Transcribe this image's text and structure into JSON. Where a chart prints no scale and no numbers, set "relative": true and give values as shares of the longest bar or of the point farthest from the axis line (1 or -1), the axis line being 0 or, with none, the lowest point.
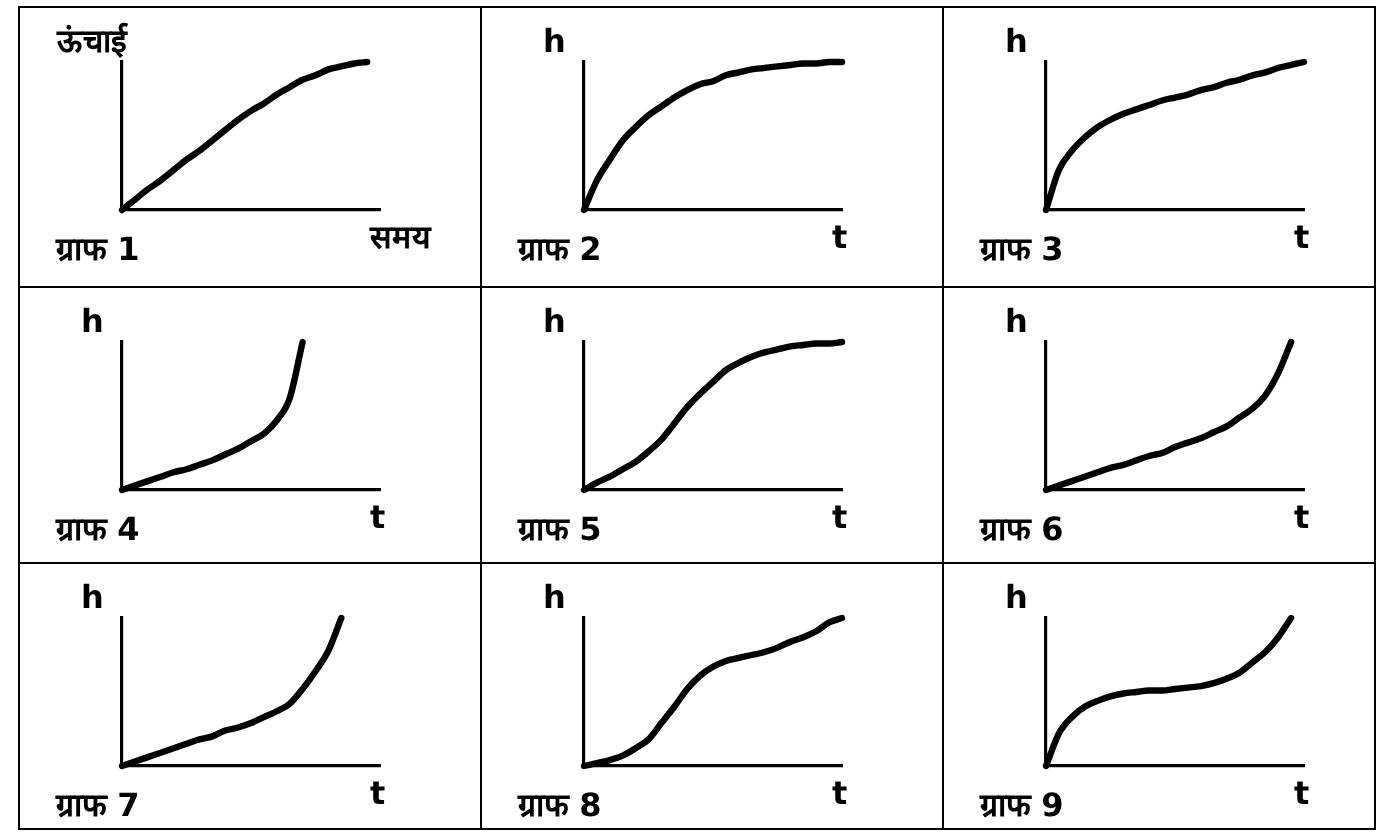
{
  "chart_data": [
    {
      "type": "line",
      "title": "ग्राफ 1",
      "xlabel": "समय",
      "ylabel": "ऊंचाई",
      "relative": true,
      "color": "#000000",
      "categories": [
        null,
        null,
        null,
        null,
        null,
        null,
        null,
        null,
        null,
        null,
        null,
        null,
        null,
        null,
        null,
        null,
        null,
        null,
        null,
        null,
        null
      ],
      "values": [
        0,
        0.07,
        0.14,
        0.2,
        0.27,
        0.34,
        0.4,
        0.47,
        0.54,
        0.61,
        0.67,
        0.72,
        0.78,
        0.83,
        0.88,
        0.91,
        0.95,
        0.97,
        0.99,
        1,
        null
      ]
    },
    {
      "type": "line",
      "title": "ग्राफ 2",
      "xlabel": "t",
      "ylabel": "h",
      "relative": true,
      "color": "#000000",
      "categories": [
        null,
        null,
        null,
        null,
        null,
        null,
        null,
        null,
        null,
        null,
        null,
        null,
        null,
        null,
        null,
        null,
        null,
        null,
        null,
        null,
        null
      ],
      "values": [
        0,
        0.2,
        0.34,
        0.47,
        0.56,
        0.64,
        0.7,
        0.76,
        0.81,
        0.85,
        0.87,
        0.91,
        0.93,
        0.95,
        0.96,
        0.97,
        0.98,
        0.99,
        0.99,
        1,
        1
      ]
    },
    {
      "type": "line",
      "title": "ग्राफ 3",
      "xlabel": "t",
      "ylabel": "h",
      "relative": true,
      "color": "#000000",
      "categories": [
        null,
        null,
        null,
        null,
        null,
        null,
        null,
        null,
        null,
        null,
        null,
        null,
        null,
        null,
        null,
        null,
        null,
        null,
        null,
        null,
        null
      ],
      "values": [
        0,
        0.27,
        0.4,
        0.49,
        0.56,
        0.61,
        0.65,
        0.68,
        0.71,
        0.74,
        0.76,
        0.78,
        0.81,
        0.83,
        0.86,
        0.88,
        0.91,
        0.93,
        0.96,
        0.98,
        1
      ]
    },
    {
      "type": "line",
      "title": "ग्राफ 4",
      "xlabel": "t",
      "ylabel": "h",
      "relative": true,
      "color": "#000000",
      "categories": [
        null,
        null,
        null,
        null,
        null,
        null,
        null,
        null,
        null,
        null,
        null,
        null,
        null,
        null,
        null,
        null,
        null,
        null,
        null,
        null,
        null
      ],
      "values": [
        0,
        0.03,
        0.06,
        0.09,
        0.12,
        0.14,
        0.17,
        0.2,
        0.24,
        0.28,
        0.33,
        0.38,
        0.47,
        0.62,
        1,
        null,
        null,
        null,
        null,
        null,
        null
      ]
    },
    {
      "type": "line",
      "title": "ग्राफ 5",
      "xlabel": "t",
      "ylabel": "h",
      "relative": true,
      "color": "#000000",
      "categories": [
        null,
        null,
        null,
        null,
        null,
        null,
        null,
        null,
        null,
        null,
        null,
        null,
        null,
        null,
        null,
        null,
        null,
        null,
        null,
        null,
        null
      ],
      "values": [
        0,
        0.05,
        0.09,
        0.14,
        0.19,
        0.26,
        0.34,
        0.45,
        0.56,
        0.65,
        0.73,
        0.81,
        0.86,
        0.9,
        0.93,
        0.95,
        0.97,
        0.98,
        0.99,
        0.99,
        1
      ]
    },
    {
      "type": "line",
      "title": "ग्राफ 6",
      "xlabel": "t",
      "ylabel": "h",
      "relative": true,
      "color": "#000000",
      "categories": [
        null,
        null,
        null,
        null,
        null,
        null,
        null,
        null,
        null,
        null,
        null,
        null,
        null,
        null,
        null,
        null,
        null,
        null,
        null,
        null,
        null
      ],
      "values": [
        0,
        0.03,
        0.06,
        0.09,
        0.12,
        0.15,
        0.17,
        0.2,
        0.23,
        0.25,
        0.29,
        0.32,
        0.35,
        0.39,
        0.43,
        0.49,
        0.55,
        0.64,
        0.79,
        1,
        null
      ]
    },
    {
      "type": "line",
      "title": "ग्राफ 7",
      "xlabel": "t",
      "ylabel": "h",
      "relative": true,
      "color": "#000000",
      "categories": [
        null,
        null,
        null,
        null,
        null,
        null,
        null,
        null,
        null,
        null,
        null,
        null,
        null,
        null,
        null,
        null,
        null,
        null,
        null,
        null,
        null
      ],
      "values": [
        0,
        0.03,
        0.06,
        0.09,
        0.12,
        0.15,
        0.18,
        0.2,
        0.24,
        0.26,
        0.29,
        0.33,
        0.37,
        0.42,
        0.52,
        0.64,
        0.78,
        1,
        null,
        null,
        null
      ]
    },
    {
      "type": "line",
      "title": "ग्राफ 8",
      "xlabel": "t",
      "ylabel": "h",
      "relative": true,
      "color": "#000000",
      "categories": [
        null,
        null,
        null,
        null,
        null,
        null,
        null,
        null,
        null,
        null,
        null,
        null,
        null,
        null,
        null,
        null,
        null,
        null,
        null,
        null,
        null
      ],
      "values": [
        0,
        0.02,
        0.04,
        0.07,
        0.12,
        0.18,
        0.29,
        0.4,
        0.52,
        0.61,
        0.67,
        0.71,
        0.73,
        0.75,
        0.77,
        0.8,
        0.84,
        0.87,
        0.91,
        0.97,
        1
      ]
    },
    {
      "type": "line",
      "title": "ग्राफ 9",
      "xlabel": "t",
      "ylabel": "h",
      "relative": true,
      "color": "#000000",
      "categories": [
        null,
        null,
        null,
        null,
        null,
        null,
        null,
        null,
        null,
        null,
        null,
        null,
        null,
        null,
        null,
        null,
        null,
        null,
        null,
        null,
        null
      ],
      "values": [
        0,
        0.22,
        0.33,
        0.4,
        0.44,
        0.47,
        0.49,
        0.5,
        0.51,
        0.51,
        0.52,
        0.53,
        0.54,
        0.56,
        0.59,
        0.63,
        0.7,
        0.77,
        0.87,
        1,
        null
      ]
    }
  ]
}
